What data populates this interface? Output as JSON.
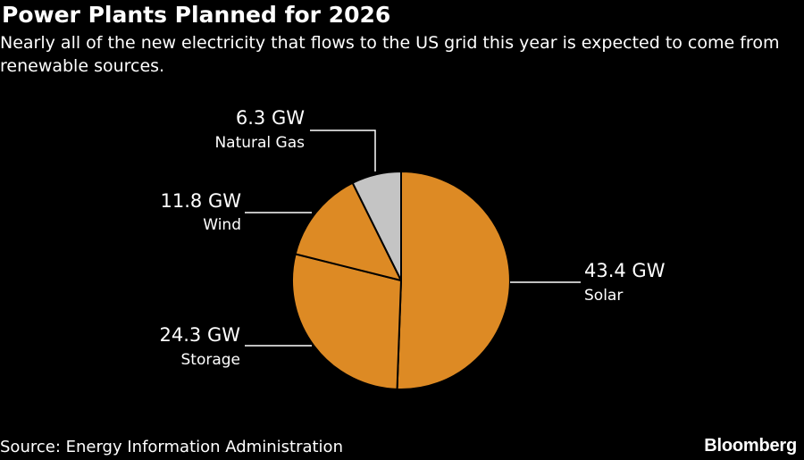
{
  "header": {
    "title": "Power Plants Planned for 2026",
    "subtitle": "Nearly all of the new electricity that flows to the US grid this year is expected to come from renewable sources."
  },
  "footer": {
    "source": "Source: Energy Information Administration",
    "brand": "Bloomberg"
  },
  "colors": {
    "background": "#000000",
    "renewable": "#dd8a24",
    "gas": "#c4c4c4",
    "slice_border": "#000000",
    "leader_line": "#ffffff"
  },
  "chart_data": {
    "type": "pie",
    "unit": "GW",
    "slices": [
      {
        "name": "Solar",
        "value": 43.4,
        "label": "43.4 GW",
        "color": "#dd8a24"
      },
      {
        "name": "Storage",
        "value": 24.3,
        "label": "24.3 GW",
        "color": "#dd8a24"
      },
      {
        "name": "Wind",
        "value": 11.8,
        "label": "11.8 GW",
        "color": "#dd8a24"
      },
      {
        "name": "Natural Gas",
        "value": 6.3,
        "label": "6.3 GW",
        "color": "#c4c4c4"
      }
    ]
  }
}
